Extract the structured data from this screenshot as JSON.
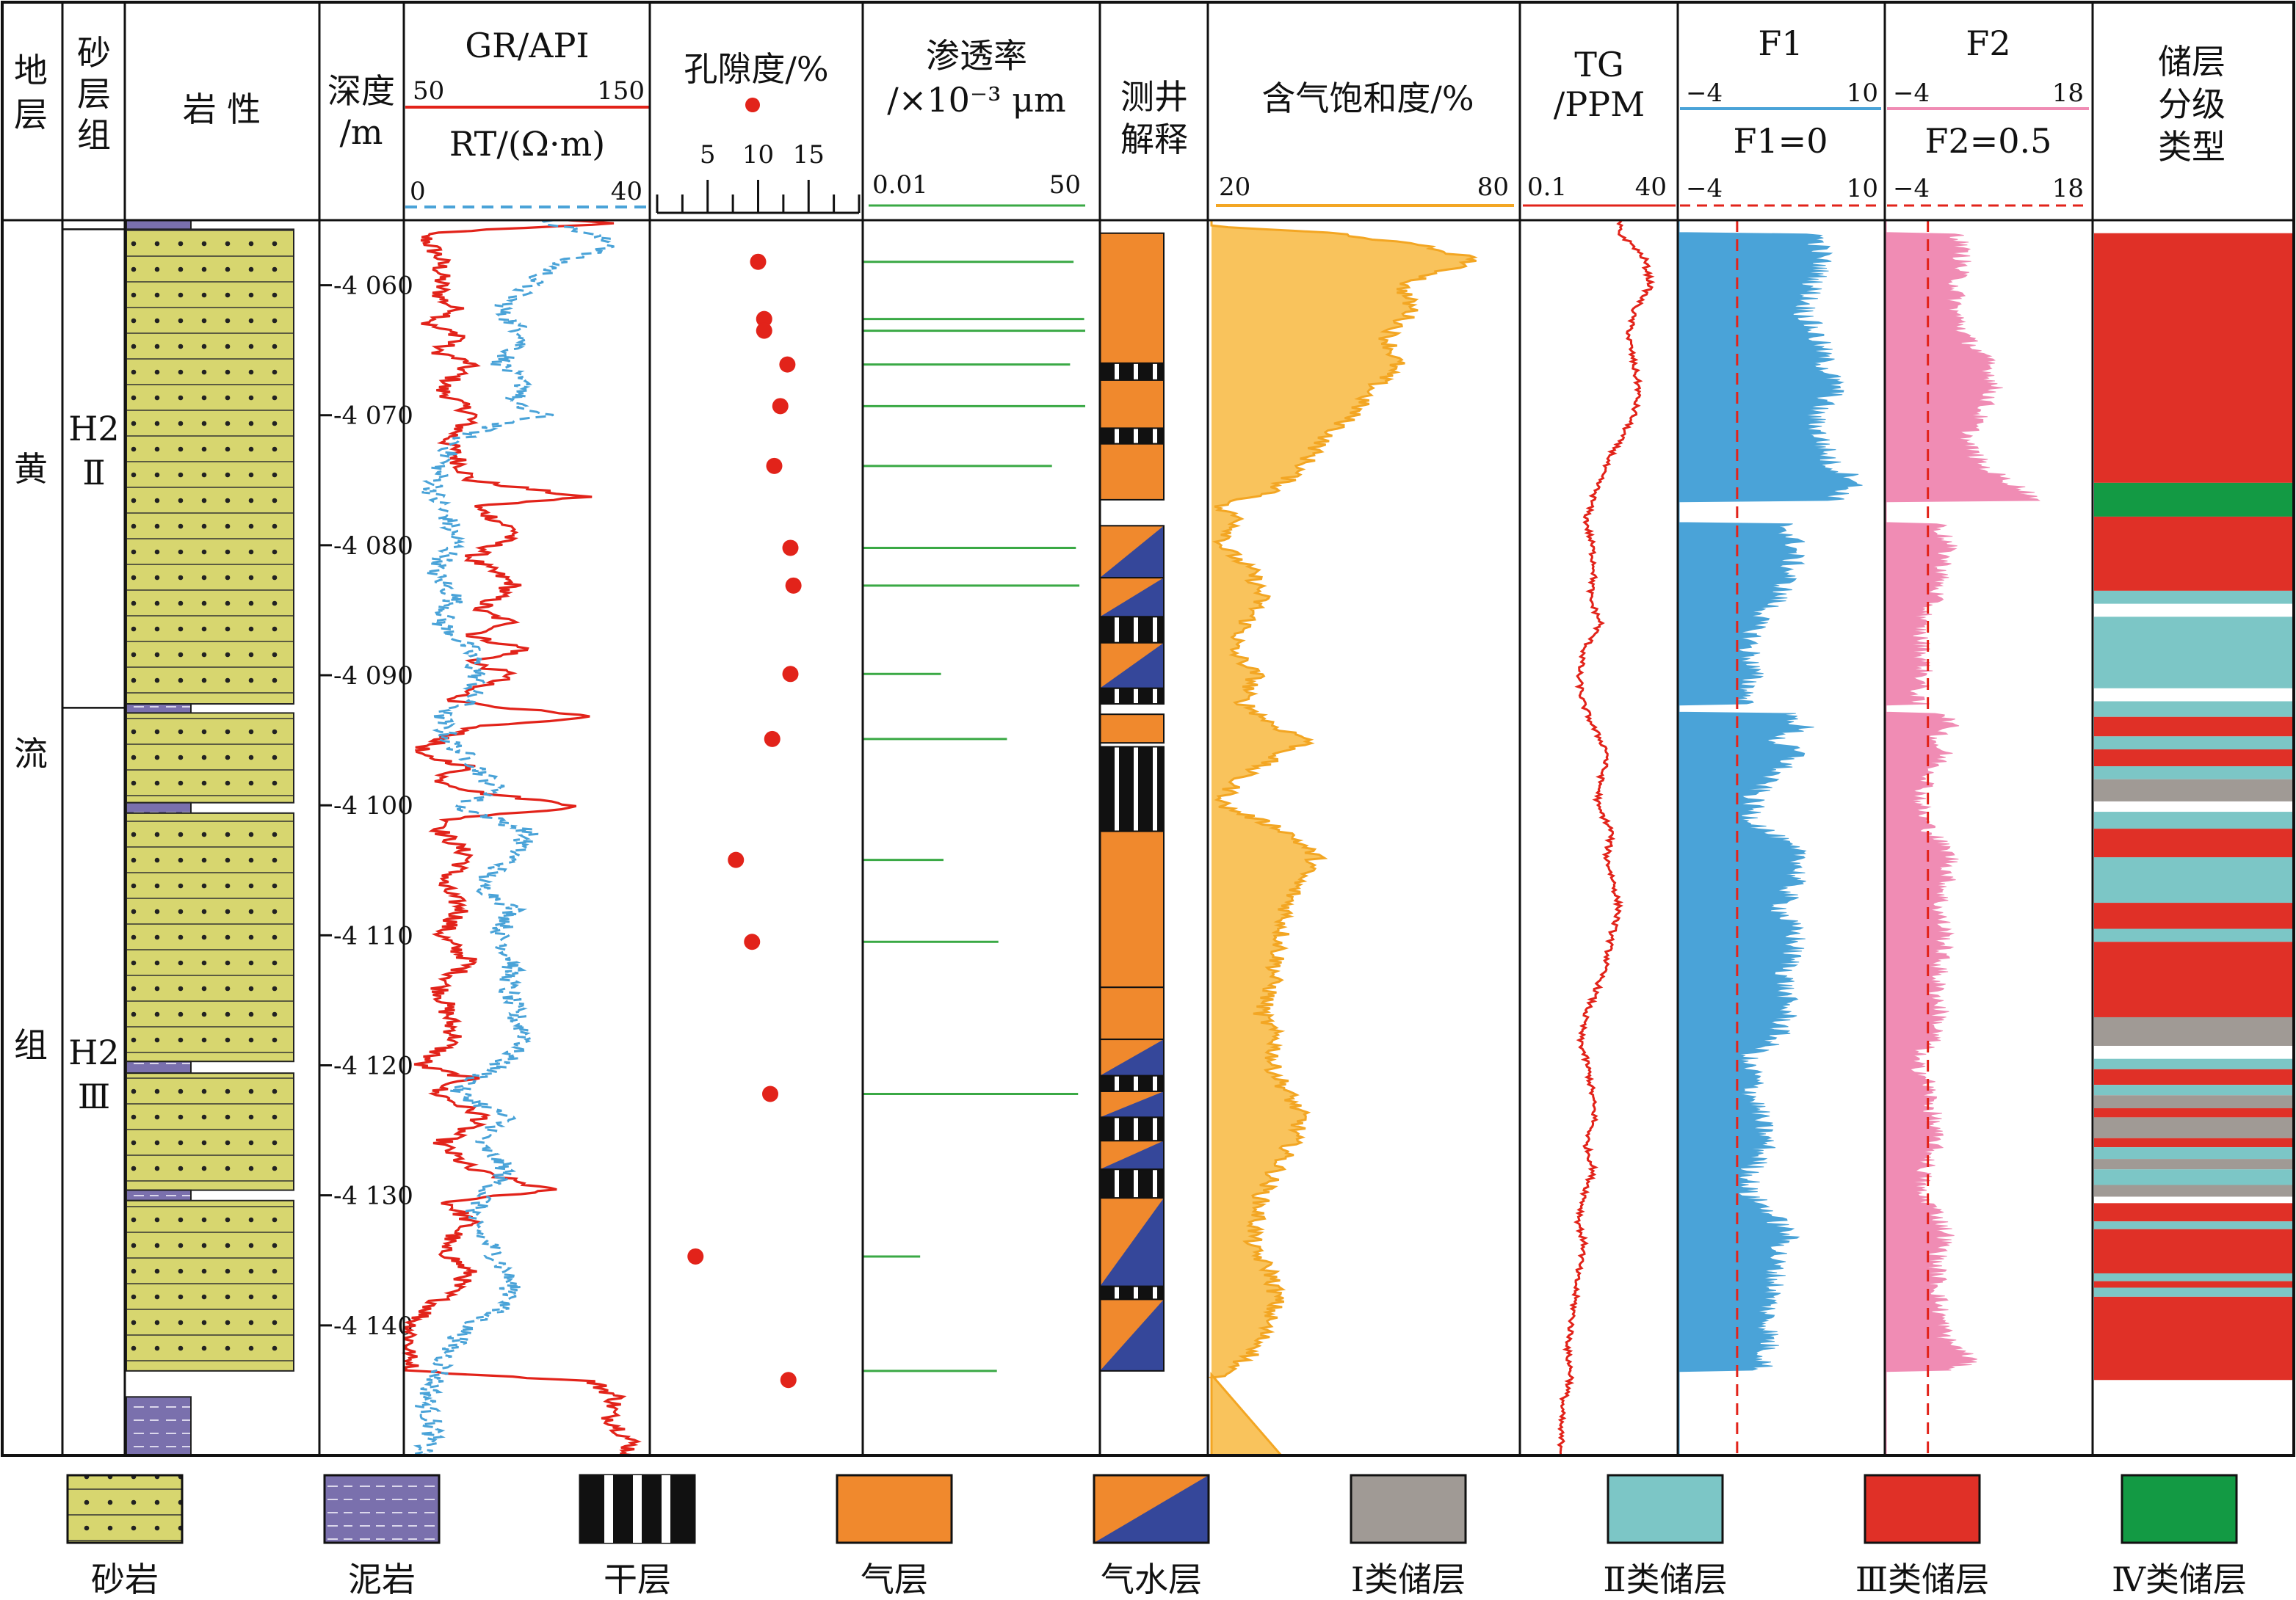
{
  "headers": {
    "formation": "地层",
    "sand_group": "砂层组",
    "lithology": "岩 性",
    "depth": "深度",
    "depth_unit": "/m",
    "gr": "GR/API",
    "gr_min": "50",
    "gr_max": "150",
    "rt": "RT/(Ω·m)",
    "rt_min": "0",
    "rt_max": "40",
    "porosity": "孔隙度/%",
    "porosity_ticks": [
      "5",
      "10",
      "15"
    ],
    "permeability_line1": "渗透率",
    "permeability_line2": "/×10⁻³ μm",
    "perm_min": "0.01",
    "perm_max": "50",
    "interpretation_line1": "测井",
    "interpretation_line2": "解释",
    "gas_saturation": "含气饱和度/%",
    "sg_min": "20",
    "sg_max": "80",
    "tg_line1": "TG",
    "tg_line2": "/PPM",
    "tg_min": "0.1",
    "tg_max": "40",
    "f1": "F1",
    "f1_min": "−4",
    "f1_max": "10",
    "f1_cut": "F1=0",
    "f2": "F2",
    "f2_min": "−4",
    "f2_max": "18",
    "f2_cut": "F2=0.5",
    "class_line1": "储层",
    "class_line2": "分级",
    "class_line3": "类型"
  },
  "formation_chars": [
    "黄",
    "流",
    "组"
  ],
  "sand_groups": [
    {
      "line1": "H2",
      "line2": "Ⅱ"
    },
    {
      "line1": "H2",
      "line2": "Ⅲ"
    }
  ],
  "legend": [
    {
      "key": "sandstone",
      "label": "砂岩"
    },
    {
      "key": "mudstone",
      "label": "泥岩"
    },
    {
      "key": "dry",
      "label": "干层"
    },
    {
      "key": "gas",
      "label": "气层"
    },
    {
      "key": "gaswater",
      "label": "气水层"
    },
    {
      "key": "class1",
      "label": "Ⅰ类储层"
    },
    {
      "key": "class2",
      "label": "Ⅱ类储层"
    },
    {
      "key": "class3",
      "label": "Ⅲ类储层"
    },
    {
      "key": "class4",
      "label": "Ⅳ类储层"
    }
  ],
  "colors": {
    "sandstone": "#d7d66f",
    "mudstone": "#7a70ad",
    "gas": "#f0892d",
    "water": "#35479a",
    "dry": "#111111",
    "class1": "#a09a95",
    "class2": "#7cc6c6",
    "class3": "#e03027",
    "class4": "#139a44",
    "gr": "#e2231a",
    "rt": "#4aa3d8",
    "porosity": "#e2231a",
    "permeability": "#3aa945",
    "saturation": "#f9c35c",
    "saturation_line": "#f3a623",
    "tg": "#e2231a",
    "f1": "#4aa3d8",
    "f2": "#f08cb4",
    "cutoff": "#e2231a"
  },
  "chart_data": {
    "type": "line",
    "depth_ticks": [
      "-4 060",
      "-4 070",
      "-4 080",
      "-4 090",
      "-4 100",
      "-4 110",
      "-4 120",
      "-4 130",
      "-4 140"
    ],
    "depth_tick_values": [
      4060,
      4070,
      4080,
      4090,
      4100,
      4110,
      4120,
      4130,
      4140
    ],
    "depth_range": [
      4055.0,
      4150.0
    ],
    "lithology": [
      {
        "type": "mudstone",
        "top": 4055.0,
        "base": 4055.7
      },
      {
        "type": "sandstone",
        "top": 4055.7,
        "base": 4092.2
      },
      {
        "type": "mudstone",
        "top": 4092.2,
        "base": 4092.9
      },
      {
        "type": "sandstone",
        "top": 4092.9,
        "base": 4099.8
      },
      {
        "type": "mudstone",
        "top": 4099.8,
        "base": 4100.6
      },
      {
        "type": "sandstone",
        "top": 4100.6,
        "base": 4119.7
      },
      {
        "type": "mudstone",
        "top": 4119.7,
        "base": 4120.6
      },
      {
        "type": "sandstone",
        "top": 4120.6,
        "base": 4129.6
      },
      {
        "type": "mudstone",
        "top": 4129.6,
        "base": 4130.4
      },
      {
        "type": "sandstone",
        "top": 4130.4,
        "base": 4143.5
      },
      {
        "type": "mudstone",
        "top": 4145.5,
        "base": 4150.0
      }
    ],
    "sand_group_boundary_depths": [
      4055.7,
      4092.5
    ],
    "porosity": [
      {
        "depth": 4058.2,
        "value": 10.0
      },
      {
        "depth": 4062.6,
        "value": 10.6
      },
      {
        "depth": 4063.5,
        "value": 10.6
      },
      {
        "depth": 4066.1,
        "value": 12.9
      },
      {
        "depth": 4069.3,
        "value": 12.2
      },
      {
        "depth": 4073.9,
        "value": 11.6
      },
      {
        "depth": 4080.2,
        "value": 13.2
      },
      {
        "depth": 4083.1,
        "value": 13.5
      },
      {
        "depth": 4089.9,
        "value": 13.2
      },
      {
        "depth": 4094.9,
        "value": 11.4
      },
      {
        "depth": 4104.2,
        "value": 7.8
      },
      {
        "depth": 4110.5,
        "value": 9.4
      },
      {
        "depth": 4122.2,
        "value": 11.2
      },
      {
        "depth": 4134.7,
        "value": 3.8
      },
      {
        "depth": 4144.2,
        "value": 13.0
      }
    ],
    "permeability": [
      {
        "depth": 4058.2,
        "value": 32
      },
      {
        "depth": 4062.6,
        "value": 48
      },
      {
        "depth": 4063.5,
        "value": 50
      },
      {
        "depth": 4066.1,
        "value": 28
      },
      {
        "depth": 4069.3,
        "value": 64
      },
      {
        "depth": 4073.9,
        "value": 14
      },
      {
        "depth": 4080.2,
        "value": 35
      },
      {
        "depth": 4083.1,
        "value": 40
      },
      {
        "depth": 4089.9,
        "value": 0.2
      },
      {
        "depth": 4094.9,
        "value": 2.5
      },
      {
        "depth": 4104.2,
        "value": 0.22
      },
      {
        "depth": 4110.5,
        "value": 1.8
      },
      {
        "depth": 4122.2,
        "value": 38
      },
      {
        "depth": 4134.7,
        "value": 0.09
      },
      {
        "depth": 4143.5,
        "value": 1.7
      }
    ],
    "interpretation": [
      {
        "type": "gas",
        "top": 4056.0,
        "base": 4066.0
      },
      {
        "type": "dry",
        "top": 4066.0,
        "base": 4067.3
      },
      {
        "type": "gas",
        "top": 4067.3,
        "base": 4071.0
      },
      {
        "type": "dry",
        "top": 4071.0,
        "base": 4072.2
      },
      {
        "type": "gas",
        "top": 4072.2,
        "base": 4076.5
      },
      {
        "type": "gaswater",
        "top": 4078.5,
        "base": 4082.5
      },
      {
        "type": "gaswater",
        "top": 4082.5,
        "base": 4085.5
      },
      {
        "type": "dry",
        "top": 4085.5,
        "base": 4087.5
      },
      {
        "type": "gaswater",
        "top": 4087.5,
        "base": 4091.0
      },
      {
        "type": "dry",
        "top": 4091.0,
        "base": 4092.2
      },
      {
        "type": "gas",
        "top": 4093.0,
        "base": 4095.2
      },
      {
        "type": "dry",
        "top": 4095.5,
        "base": 4102.0
      },
      {
        "type": "gas",
        "top": 4102.0,
        "base": 4114.0
      },
      {
        "type": "gas",
        "top": 4114.0,
        "base": 4118.0
      },
      {
        "type": "gaswater",
        "top": 4118.0,
        "base": 4120.8
      },
      {
        "type": "dry",
        "top": 4120.8,
        "base": 4122.0
      },
      {
        "type": "gaswater",
        "top": 4122.0,
        "base": 4124.0
      },
      {
        "type": "dry",
        "top": 4124.0,
        "base": 4125.8
      },
      {
        "type": "gaswater",
        "top": 4125.8,
        "base": 4128.0
      },
      {
        "type": "dry",
        "top": 4128.0,
        "base": 4130.2
      },
      {
        "type": "gaswater",
        "top": 4130.2,
        "base": 4137.0
      },
      {
        "type": "dry",
        "top": 4137.0,
        "base": 4138.0
      },
      {
        "type": "gaswater",
        "top": 4138.0,
        "base": 4143.5
      }
    ],
    "reservoir_class": [
      {
        "type": "class3",
        "top": 4056.0,
        "base": 4075.2
      },
      {
        "type": "class4",
        "top": 4075.2,
        "base": 4077.8
      },
      {
        "type": "class3",
        "top": 4077.8,
        "base": 4083.5
      },
      {
        "type": "class2",
        "top": 4083.5,
        "base": 4084.5
      },
      {
        "type": "class2",
        "top": 4085.5,
        "base": 4091.0
      },
      {
        "type": "class2",
        "top": 4092.0,
        "base": 4093.2
      },
      {
        "type": "class3",
        "top": 4093.2,
        "base": 4094.7
      },
      {
        "type": "class2",
        "top": 4094.7,
        "base": 4095.7
      },
      {
        "type": "class3",
        "top": 4095.7,
        "base": 4097.0
      },
      {
        "type": "class2",
        "top": 4097.0,
        "base": 4098.0
      },
      {
        "type": "class1",
        "top": 4098.0,
        "base": 4099.7
      },
      {
        "type": "class2",
        "top": 4100.5,
        "base": 4101.8
      },
      {
        "type": "class3",
        "top": 4101.8,
        "base": 4104.0
      },
      {
        "type": "class2",
        "top": 4104.0,
        "base": 4107.5
      },
      {
        "type": "class3",
        "top": 4107.5,
        "base": 4109.5
      },
      {
        "type": "class2",
        "top": 4109.5,
        "base": 4110.5
      },
      {
        "type": "class3",
        "top": 4110.5,
        "base": 4116.3
      },
      {
        "type": "class1",
        "top": 4116.3,
        "base": 4118.5
      },
      {
        "type": "class2",
        "top": 4119.5,
        "base": 4120.3
      },
      {
        "type": "class3",
        "top": 4120.3,
        "base": 4121.5
      },
      {
        "type": "class2",
        "top": 4121.5,
        "base": 4122.3
      },
      {
        "type": "class1",
        "top": 4122.3,
        "base": 4123.3
      },
      {
        "type": "class3",
        "top": 4123.3,
        "base": 4124.0
      },
      {
        "type": "class1",
        "top": 4124.0,
        "base": 4125.6
      },
      {
        "type": "class3",
        "top": 4125.6,
        "base": 4126.3
      },
      {
        "type": "class2",
        "top": 4126.3,
        "base": 4127.2
      },
      {
        "type": "class1",
        "top": 4127.2,
        "base": 4128.0
      },
      {
        "type": "class2",
        "top": 4128.0,
        "base": 4129.2
      },
      {
        "type": "class1",
        "top": 4129.2,
        "base": 4130.1
      },
      {
        "type": "class3",
        "top": 4130.6,
        "base": 4132.0
      },
      {
        "type": "class2",
        "top": 4132.0,
        "base": 4132.6
      },
      {
        "type": "class3",
        "top": 4132.6,
        "base": 4136.0
      },
      {
        "type": "class2",
        "top": 4136.0,
        "base": 4136.6
      },
      {
        "type": "class3",
        "top": 4136.6,
        "base": 4137.1
      },
      {
        "type": "class2",
        "top": 4137.1,
        "base": 4137.8
      },
      {
        "type": "class3",
        "top": 4137.8,
        "base": 4144.2
      }
    ]
  }
}
